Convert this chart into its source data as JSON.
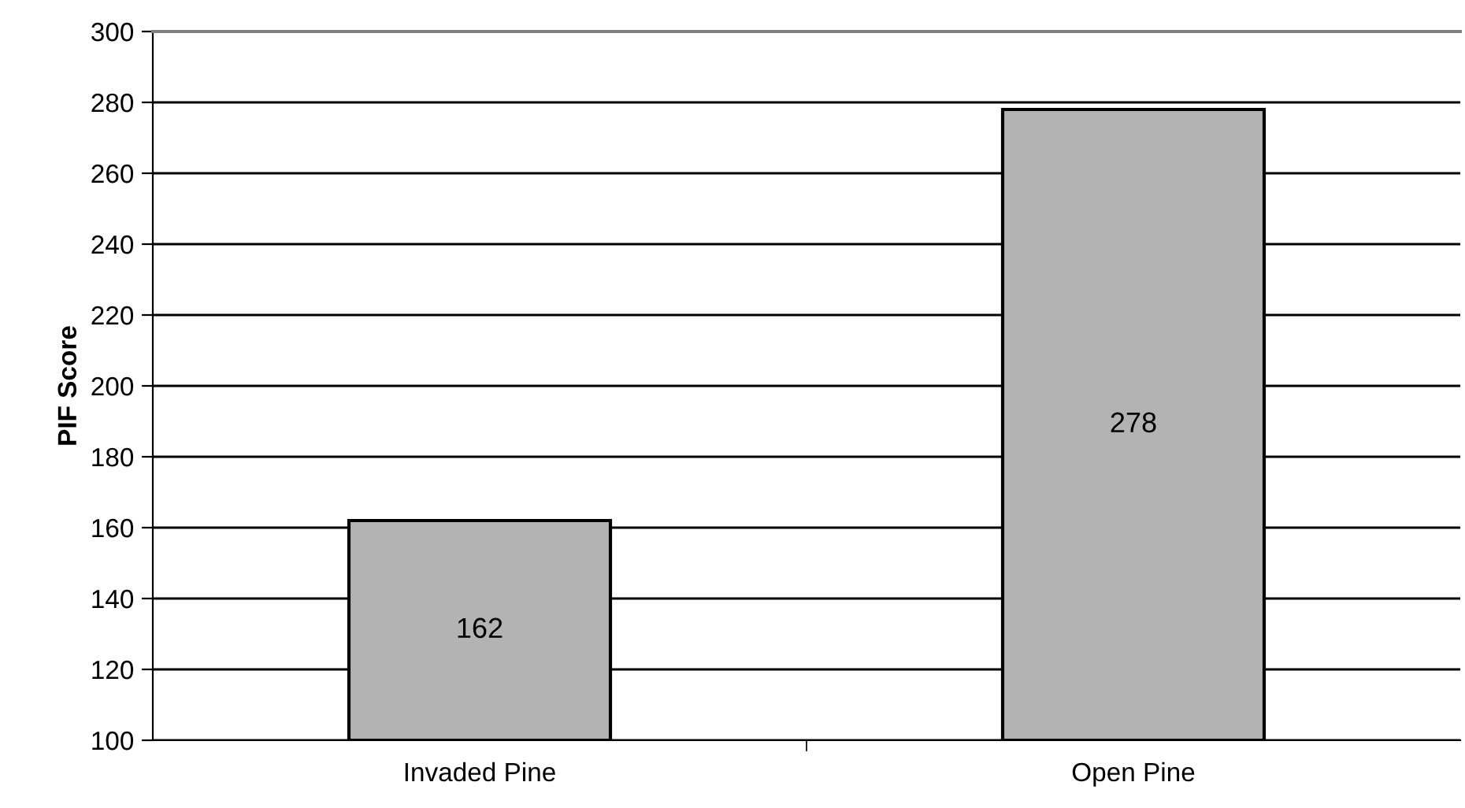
{
  "chart_data": {
    "type": "bar",
    "ylabel": "PIF Score",
    "categories": [
      "Invaded Pine",
      "Open Pine"
    ],
    "values": [
      162,
      278
    ],
    "color": "#b3b3b3",
    "ylim": [
      100,
      300
    ],
    "yticks": [
      100,
      120,
      140,
      160,
      180,
      200,
      220,
      240,
      260,
      280,
      300
    ],
    "grid": "y",
    "data_labels": true
  }
}
